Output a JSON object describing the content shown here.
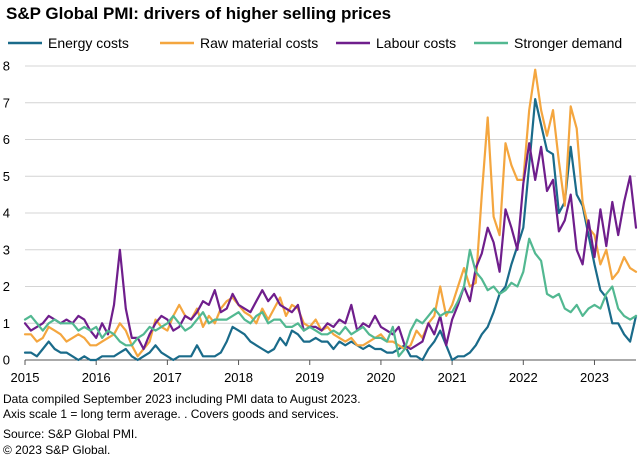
{
  "title": "S&P Global PMI: drivers of higher selling prices",
  "notes": [
    "Data compiled September 2023 including PMI data to August 2023.",
    "Axis scale 1 = long term average. . Covers goods and services.",
    "Source: S&P Global PMI.",
    "© 2023 S&P Global."
  ],
  "chart_data": {
    "type": "line",
    "title": "S&P Global PMI: drivers of higher selling prices",
    "x_start": "2015-01",
    "x_end": "2023-08",
    "frequency": "monthly",
    "x_ticks": [
      "2015",
      "2016",
      "2017",
      "2018",
      "2019",
      "2020",
      "2021",
      "2022",
      "2023"
    ],
    "y_ticks": [
      0,
      1,
      2,
      3,
      4,
      5,
      6,
      7,
      8
    ],
    "ylim": [
      0,
      8
    ],
    "grid": true,
    "legend": "top",
    "series": [
      {
        "name": "Energy costs",
        "color": "#1a6b8a",
        "values": [
          0.2,
          0.2,
          0.1,
          0.3,
          0.5,
          0.3,
          0.2,
          0.2,
          0.1,
          0.0,
          0.1,
          0.0,
          0.0,
          0.1,
          0.1,
          0.1,
          0.2,
          0.3,
          0.1,
          0.0,
          0.1,
          0.2,
          0.4,
          0.2,
          0.1,
          0.0,
          0.1,
          0.1,
          0.1,
          0.4,
          0.1,
          0.1,
          0.1,
          0.2,
          0.5,
          0.9,
          0.8,
          0.7,
          0.5,
          0.4,
          0.3,
          0.2,
          0.3,
          0.6,
          0.4,
          0.8,
          0.7,
          0.5,
          0.5,
          0.6,
          0.5,
          0.5,
          0.3,
          0.5,
          0.4,
          0.5,
          0.4,
          0.3,
          0.4,
          0.3,
          0.3,
          0.2,
          0.2,
          0.3,
          0.4,
          0.1,
          0.1,
          0.0,
          0.3,
          0.5,
          0.8,
          0.4,
          0.0,
          0.1,
          0.1,
          0.2,
          0.4,
          0.7,
          0.9,
          1.3,
          1.8,
          2.0,
          2.6,
          3.1,
          3.6,
          5.3,
          7.1,
          6.4,
          5.7,
          5.6,
          4.0,
          4.3,
          5.8,
          4.5,
          4.2,
          3.4,
          2.6,
          1.9,
          1.7,
          1.0,
          1.0,
          0.7,
          0.5,
          1.2
        ]
      },
      {
        "name": "Raw material costs",
        "color": "#f4a63f",
        "values": [
          0.7,
          0.7,
          0.5,
          0.6,
          0.9,
          0.8,
          0.7,
          0.5,
          0.6,
          0.7,
          0.6,
          0.4,
          0.4,
          0.5,
          0.6,
          0.7,
          1.0,
          0.8,
          0.4,
          0.1,
          0.3,
          0.5,
          1.1,
          0.9,
          0.8,
          1.2,
          1.5,
          1.2,
          1.1,
          1.4,
          0.9,
          1.2,
          1.0,
          1.4,
          1.6,
          1.7,
          1.5,
          1.3,
          1.2,
          1.0,
          1.4,
          1.1,
          1.4,
          1.7,
          1.2,
          1.5,
          1.4,
          1.0,
          0.9,
          1.1,
          0.8,
          0.9,
          0.7,
          0.6,
          0.5,
          0.6,
          0.4,
          0.4,
          0.5,
          0.6,
          0.7,
          0.5,
          0.5,
          0.4,
          0.3,
          0.4,
          0.8,
          0.6,
          1.0,
          1.2,
          2.0,
          1.2,
          1.5,
          2.0,
          2.5,
          2.0,
          2.1,
          4.5,
          6.6,
          3.9,
          3.4,
          5.9,
          5.3,
          4.9,
          4.9,
          6.8,
          7.9,
          6.8,
          6.1,
          6.8,
          5.4,
          4.2,
          6.9,
          6.3,
          4.3,
          3.6,
          3.4,
          2.6,
          3.0,
          2.2,
          2.4,
          2.8,
          2.5,
          2.4
        ]
      },
      {
        "name": "Labour costs",
        "color": "#6f1e8c",
        "values": [
          1.0,
          0.8,
          0.9,
          1.0,
          1.2,
          1.1,
          1.0,
          1.1,
          1.0,
          1.2,
          1.1,
          0.8,
          0.6,
          1.0,
          0.7,
          1.5,
          3.0,
          1.4,
          0.6,
          0.6,
          0.3,
          0.7,
          1.0,
          1.2,
          1.1,
          0.8,
          0.9,
          1.2,
          1.1,
          1.3,
          1.6,
          1.5,
          1.9,
          1.3,
          1.4,
          1.8,
          1.5,
          1.4,
          1.3,
          1.6,
          1.9,
          1.6,
          1.8,
          1.5,
          1.4,
          1.3,
          1.5,
          0.8,
          0.9,
          0.9,
          0.8,
          1.0,
          0.9,
          1.1,
          1.0,
          1.5,
          0.8,
          1.0,
          0.9,
          1.2,
          0.9,
          0.8,
          0.7,
          0.9,
          0.4,
          0.3,
          0.4,
          0.5,
          1.0,
          0.7,
          1.2,
          0.4,
          1.1,
          1.5,
          2.0,
          1.6,
          2.5,
          2.9,
          3.6,
          3.2,
          2.4,
          4.1,
          3.6,
          3.0,
          4.8,
          5.9,
          4.9,
          5.8,
          4.6,
          4.9,
          3.5,
          3.8,
          4.5,
          3.0,
          2.6,
          3.8,
          2.8,
          4.1,
          3.1,
          4.3,
          3.4,
          4.3,
          5.0,
          3.6
        ]
      },
      {
        "name": "Stronger demand",
        "color": "#52b891",
        "values": [
          1.1,
          1.2,
          1.0,
          0.8,
          1.0,
          1.1,
          1.0,
          1.0,
          1.0,
          0.8,
          0.9,
          0.8,
          0.9,
          0.6,
          0.8,
          0.7,
          0.5,
          0.4,
          0.4,
          0.6,
          0.7,
          0.9,
          0.8,
          0.9,
          1.0,
          1.2,
          1.0,
          0.8,
          0.9,
          1.1,
          1.3,
          1.0,
          1.1,
          1.1,
          1.1,
          1.2,
          1.3,
          1.1,
          1.0,
          1.2,
          1.3,
          1.0,
          1.1,
          1.1,
          0.9,
          0.9,
          1.0,
          0.8,
          0.9,
          0.8,
          0.7,
          0.7,
          0.8,
          0.7,
          0.9,
          0.7,
          0.8,
          0.9,
          0.7,
          0.6,
          0.6,
          0.5,
          0.9,
          0.1,
          0.3,
          0.8,
          1.1,
          1.0,
          1.2,
          1.4,
          1.2,
          1.3,
          1.3,
          1.6,
          2.0,
          3.0,
          2.4,
          2.2,
          1.9,
          2.0,
          1.8,
          1.9,
          2.1,
          2.0,
          2.4,
          3.3,
          2.9,
          2.7,
          1.8,
          1.7,
          1.8,
          1.4,
          1.3,
          1.5,
          1.2,
          1.4,
          1.5,
          1.4,
          1.8,
          2.0,
          1.4,
          1.2,
          1.1,
          1.2
        ]
      }
    ]
  }
}
